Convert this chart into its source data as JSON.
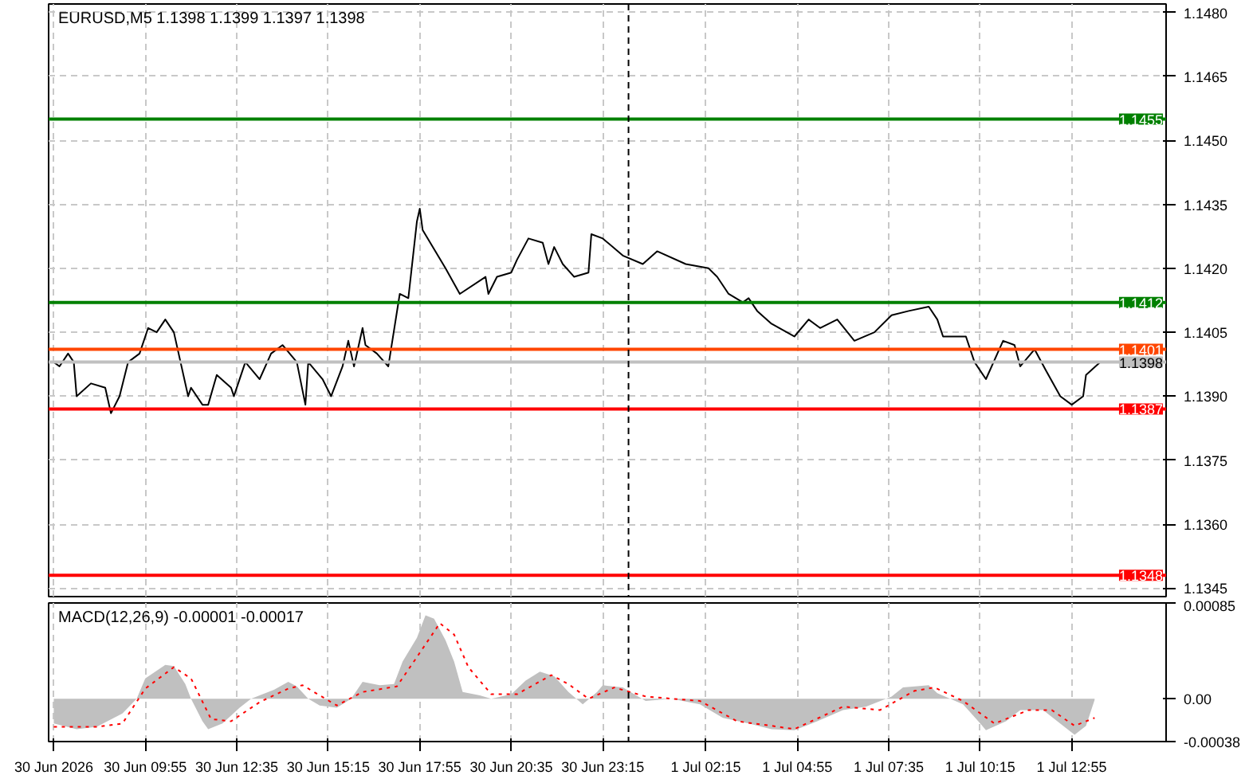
{
  "chart_data": [
    {
      "type": "line",
      "title": "EURUSD,M5  1.1398 1.1399 1.1397 1.1398",
      "series": [
        {
          "color": "#000000",
          "x": [
            "2026-06-30T07:15",
            "2026-06-30T07:25",
            "2026-06-30T07:40",
            "2026-06-30T07:50",
            "2026-06-30T07:55",
            "2026-06-30T08:20",
            "2026-06-30T08:45",
            "2026-06-30T08:55",
            "2026-06-30T09:10",
            "2026-06-30T09:25",
            "2026-06-30T09:45",
            "2026-06-30T10:00",
            "2026-06-30T10:15",
            "2026-06-30T10:30",
            "2026-06-30T10:45",
            "2026-06-30T11:10",
            "2026-06-30T11:15",
            "2026-06-30T11:35",
            "2026-06-30T11:45",
            "2026-06-30T12:00",
            "2026-06-30T12:25",
            "2026-06-30T12:30",
            "2026-06-30T12:50",
            "2026-06-30T13:15",
            "2026-06-30T13:35",
            "2026-06-30T13:55",
            "2026-06-30T14:20",
            "2026-06-30T14:35",
            "2026-06-30T14:40",
            "2026-06-30T15:05",
            "2026-06-30T15:20",
            "2026-06-30T15:40",
            "2026-06-30T15:50",
            "2026-06-30T16:00",
            "2026-06-30T16:15",
            "2026-06-30T16:20",
            "2026-06-30T16:40",
            "2026-06-30T17:00",
            "2026-06-30T17:20",
            "2026-06-30T17:35",
            "2026-06-30T17:50",
            "2026-06-30T17:55",
            "2026-06-30T18:00",
            "2026-06-30T18:40",
            "2026-06-30T19:05",
            "2026-06-30T19:50",
            "2026-06-30T19:55",
            "2026-06-30T20:10",
            "2026-06-30T20:35",
            "2026-06-30T20:45",
            "2026-06-30T21:05",
            "2026-06-30T21:30",
            "2026-06-30T21:40",
            "2026-06-30T21:50",
            "2026-06-30T22:05",
            "2026-06-30T22:25",
            "2026-06-30T22:50",
            "2026-06-30T22:55",
            "2026-06-30T23:15",
            "2026-06-30T23:50",
            "2026-07-01T00:25",
            "2026-07-01T00:50",
            "2026-07-01T01:40",
            "2026-07-01T02:20",
            "2026-07-01T02:35",
            "2026-07-01T02:55",
            "2026-07-01T03:20",
            "2026-07-01T03:30",
            "2026-07-01T03:45",
            "2026-07-01T04:10",
            "2026-07-01T04:50",
            "2026-07-01T05:15",
            "2026-07-01T05:35",
            "2026-07-01T06:05",
            "2026-07-01T06:35",
            "2026-07-01T07:10",
            "2026-07-01T07:40",
            "2026-07-01T08:10",
            "2026-07-01T08:45",
            "2026-07-01T09:00",
            "2026-07-01T09:10",
            "2026-07-01T09:50",
            "2026-07-01T10:05",
            "2026-07-01T10:25",
            "2026-07-01T10:45",
            "2026-07-01T10:55",
            "2026-07-01T11:15",
            "2026-07-01T11:25",
            "2026-07-01T11:50",
            "2026-07-01T12:10",
            "2026-07-01T12:35",
            "2026-07-01T12:55",
            "2026-07-01T13:15",
            "2026-07-01T13:20",
            "2026-07-01T13:45"
          ],
          "values": [
            1.1398,
            1.1397,
            1.14,
            1.1398,
            1.139,
            1.1393,
            1.1392,
            1.1386,
            1.139,
            1.1398,
            1.14,
            1.1406,
            1.1405,
            1.1408,
            1.1405,
            1.139,
            1.1392,
            1.1388,
            1.1388,
            1.1395,
            1.1392,
            1.139,
            1.1398,
            1.1394,
            1.14,
            1.1402,
            1.1398,
            1.1388,
            1.1398,
            1.1394,
            1.139,
            1.1397,
            1.1403,
            1.1397,
            1.1406,
            1.1402,
            1.14,
            1.1397,
            1.1414,
            1.1413,
            1.1431,
            1.1434,
            1.1429,
            1.142,
            1.1414,
            1.1418,
            1.1414,
            1.1418,
            1.1419,
            1.1422,
            1.1427,
            1.1426,
            1.1421,
            1.1425,
            1.1421,
            1.1418,
            1.1419,
            1.1428,
            1.1427,
            1.1423,
            1.1421,
            1.1424,
            1.1421,
            1.142,
            1.1418,
            1.1414,
            1.1412,
            1.1413,
            1.141,
            1.1407,
            1.1404,
            1.1408,
            1.1406,
            1.1408,
            1.1403,
            1.1405,
            1.1409,
            1.141,
            1.1411,
            1.1408,
            1.1404,
            1.1404,
            1.1398,
            1.1394,
            1.14,
            1.1403,
            1.1402,
            1.1397,
            1.1401,
            1.1396,
            1.139,
            1.1388,
            1.139,
            1.1395,
            1.1398
          ]
        }
      ],
      "xlim": [
        "2026-06-30T07:06",
        "2026-07-01T15:40"
      ],
      "xticks": [
        {
          "value": "2026-06-30T07:15",
          "label": null
        },
        {
          "value": "2026-06-30T09:55",
          "label": null
        },
        {
          "value": "2026-06-30T12:35",
          "label": null
        },
        {
          "value": "2026-06-30T15:15",
          "label": null
        },
        {
          "value": "2026-06-30T17:55",
          "label": null
        },
        {
          "value": "2026-06-30T20:35",
          "label": null
        },
        {
          "value": "2026-06-30T23:15",
          "label": null
        },
        {
          "value": "2026-07-01T02:15",
          "label": null
        },
        {
          "value": "2026-07-01T04:55",
          "label": null
        },
        {
          "value": "2026-07-01T07:35",
          "label": null
        },
        {
          "value": "2026-07-01T10:15",
          "label": null
        },
        {
          "value": "2026-07-01T12:55",
          "label": null
        }
      ],
      "ylim": [
        1.1343,
        1.1482
      ],
      "yticks": [
        {
          "value": 1.1345,
          "label": "1.1345"
        },
        {
          "value": 1.136,
          "label": "1.1360"
        },
        {
          "value": 1.1375,
          "label": "1.1375"
        },
        {
          "value": 1.139,
          "label": "1.1390"
        },
        {
          "value": 1.1405,
          "label": "1.1405"
        },
        {
          "value": 1.142,
          "label": "1.1420"
        },
        {
          "value": 1.1435,
          "label": "1.1435"
        },
        {
          "value": 1.145,
          "label": "1.1450"
        },
        {
          "value": 1.1465,
          "label": "1.1465"
        },
        {
          "value": 1.148,
          "label": "1.1480"
        }
      ],
      "ref_lines": [
        {
          "axis": "y",
          "value": 1.1455,
          "label": "1.1455",
          "color": "#008000"
        },
        {
          "axis": "y",
          "value": 1.1412,
          "label": "1.1412",
          "color": "#008000"
        },
        {
          "axis": "y",
          "value": 1.1401,
          "label": "1.1401",
          "color": "#ff4500"
        },
        {
          "axis": "y",
          "value": 1.1398,
          "label": "1.1398",
          "color": "#c0c0c0"
        },
        {
          "axis": "y",
          "value": 1.1387,
          "label": "1.1387",
          "color": "#ff0000"
        },
        {
          "axis": "y",
          "value": 1.1348,
          "label": "1.1348",
          "color": "#ff0000"
        },
        {
          "axis": "x",
          "value": "2026-07-01T00:00",
          "color": "#000000",
          "line_style": "dashed"
        }
      ],
      "grid": true,
      "tick_labels": "y"
    },
    {
      "type": "line",
      "title": "MACD(12,26,9) -0.00001 -0.00017",
      "series": [
        {
          "type": "area",
          "color": "#c0c0c0",
          "x": [
            "2026-06-30T07:15",
            "2026-06-30T07:55",
            "2026-06-30T08:30",
            "2026-06-30T09:15",
            "2026-06-30T09:40",
            "2026-06-30T09:55",
            "2026-06-30T10:30",
            "2026-06-30T10:45",
            "2026-06-30T11:05",
            "2026-06-30T11:15",
            "2026-06-30T11:35",
            "2026-06-30T11:45",
            "2026-06-30T12:10",
            "2026-06-30T12:40",
            "2026-06-30T13:00",
            "2026-06-30T13:15",
            "2026-06-30T13:40",
            "2026-06-30T14:05",
            "2026-06-30T14:20",
            "2026-06-30T14:40",
            "2026-06-30T15:00",
            "2026-06-30T15:30",
            "2026-06-30T15:55",
            "2026-06-30T16:15",
            "2026-06-30T16:45",
            "2026-06-30T17:10",
            "2026-06-30T17:25",
            "2026-06-30T17:50",
            "2026-06-30T18:05",
            "2026-06-30T18:20",
            "2026-06-30T18:40",
            "2026-06-30T18:55",
            "2026-06-30T19:10",
            "2026-06-30T19:40",
            "2026-06-30T20:00",
            "2026-06-30T20:35",
            "2026-06-30T21:00",
            "2026-06-30T21:25",
            "2026-06-30T21:50",
            "2026-06-30T22:15",
            "2026-06-30T22:40",
            "2026-06-30T23:05",
            "2026-06-30T23:15",
            "2026-06-30T23:50",
            "2026-07-01T00:30",
            "2026-07-01T01:15",
            "2026-07-01T02:05",
            "2026-07-01T02:45",
            "2026-07-01T03:30",
            "2026-07-01T04:10",
            "2026-07-01T04:50",
            "2026-07-01T05:30",
            "2026-07-01T06:15",
            "2026-07-01T06:55",
            "2026-07-01T07:40",
            "2026-07-01T08:00",
            "2026-07-01T08:45",
            "2026-07-01T09:00",
            "2026-07-01T09:45",
            "2026-07-01T10:15",
            "2026-07-01T10:25",
            "2026-07-01T11:00",
            "2026-07-01T11:25",
            "2026-07-01T12:05",
            "2026-07-01T12:40",
            "2026-07-01T13:00",
            "2026-07-01T13:20",
            "2026-07-01T13:35"
          ],
          "values": [
            -0.00022,
            -0.00027,
            -0.00025,
            -0.00013,
            0,
            0.00018,
            0.0003,
            0.00029,
            0.00013,
            0,
            -0.0002,
            -0.00027,
            -0.00022,
            -8e-05,
            0,
            3e-05,
            8e-05,
            0.00015,
            0.00011,
            0,
            -6e-05,
            -8e-05,
            0,
            0.00015,
            0.00012,
            0.00013,
            0.00033,
            0.00054,
            0.00074,
            0.00071,
            0.00052,
            0.00033,
            6e-05,
            3e-05,
            0,
            4e-05,
            0.00016,
            0.00024,
            0.0002,
            6e-05,
            -5e-05,
            6e-05,
            0.00012,
            0.0001,
            -2e-05,
            0,
            -5e-05,
            -0.00017,
            -0.00022,
            -0.00027,
            -0.00028,
            -0.0002,
            -0.0001,
            -7e-05,
            2e-05,
            0.0001,
            0.00012,
            5e-05,
            -5e-05,
            -0.00022,
            -0.00028,
            -0.0002,
            -0.0001,
            -0.0001,
            -0.00024,
            -0.00032,
            -0.00024,
            -1e-05
          ]
        },
        {
          "type": "line",
          "color": "#ff0000",
          "line_style": "dotted",
          "x": [
            "2026-06-30T07:15",
            "2026-06-30T08:30",
            "2026-06-30T09:15",
            "2026-06-30T09:55",
            "2026-06-30T10:45",
            "2026-06-30T11:15",
            "2026-06-30T11:50",
            "2026-06-30T12:25",
            "2026-06-30T13:15",
            "2026-06-30T14:05",
            "2026-06-30T14:30",
            "2026-06-30T15:30",
            "2026-06-30T16:15",
            "2026-06-30T17:15",
            "2026-06-30T17:50",
            "2026-06-30T18:30",
            "2026-06-30T18:55",
            "2026-06-30T19:20",
            "2026-06-30T20:00",
            "2026-06-30T20:45",
            "2026-06-30T21:45",
            "2026-06-30T22:15",
            "2026-06-30T22:50",
            "2026-06-30T23:35",
            "2026-07-01T00:30",
            "2026-07-01T02:05",
            "2026-07-01T03:10",
            "2026-07-01T04:10",
            "2026-07-01T04:50",
            "2026-07-01T06:15",
            "2026-07-01T07:20",
            "2026-07-01T08:20",
            "2026-07-01T08:55",
            "2026-07-01T09:45",
            "2026-07-01T10:40",
            "2026-07-01T11:40",
            "2026-07-01T12:20",
            "2026-07-01T13:00",
            "2026-07-01T13:35"
          ],
          "values": [
            -0.00025,
            -0.00025,
            -0.00022,
            9e-05,
            0.00028,
            0.00018,
            -0.00018,
            -0.0002,
            -3e-05,
            9e-05,
            0.00012,
            -6e-05,
            6e-05,
            0.00011,
            0.00037,
            0.00067,
            0.00057,
            0.00028,
            4e-05,
            4e-05,
            0.00021,
            0.00013,
            0,
            0.0001,
            2e-05,
            -2e-05,
            -0.0002,
            -0.00024,
            -0.00027,
            -7e-05,
            -0.0001,
            7e-05,
            0.0001,
            -2e-05,
            -0.00022,
            -0.0001,
            -0.0001,
            -0.00024,
            -0.00017
          ]
        }
      ],
      "xlim": [
        "2026-06-30T07:06",
        "2026-07-01T15:40"
      ],
      "xticks": [
        {
          "value": "2026-06-30T07:15",
          "label": "30 Jun 2026"
        },
        {
          "value": "2026-06-30T09:55",
          "label": "30 Jun 09:55"
        },
        {
          "value": "2026-06-30T12:35",
          "label": "30 Jun 12:35"
        },
        {
          "value": "2026-06-30T15:15",
          "label": "30 Jun 15:15"
        },
        {
          "value": "2026-06-30T17:55",
          "label": "30 Jun 17:55"
        },
        {
          "value": "2026-06-30T20:35",
          "label": "30 Jun 20:35"
        },
        {
          "value": "2026-06-30T23:15",
          "label": "30 Jun 23:15"
        },
        {
          "value": "2026-07-01T02:15",
          "label": "1 Jul 02:15"
        },
        {
          "value": "2026-07-01T04:55",
          "label": "1 Jul 04:55"
        },
        {
          "value": "2026-07-01T07:35",
          "label": "1 Jul 07:35"
        },
        {
          "value": "2026-07-01T10:15",
          "label": "1 Jul 10:15"
        },
        {
          "value": "2026-07-01T12:55",
          "label": "1 Jul 12:55"
        }
      ],
      "ylim": [
        -0.00038,
        0.00085
      ],
      "yticks": [
        {
          "value": -0.00038,
          "label": "-0.00038"
        },
        {
          "value": 0,
          "label": "0.00"
        },
        {
          "value": 0.00085,
          "label": "0.00085"
        }
      ],
      "ref_lines": [
        {
          "axis": "x",
          "value": "2026-07-01T00:00",
          "color": "#000000",
          "line_style": "dashed"
        }
      ],
      "grid": "x"
    }
  ]
}
